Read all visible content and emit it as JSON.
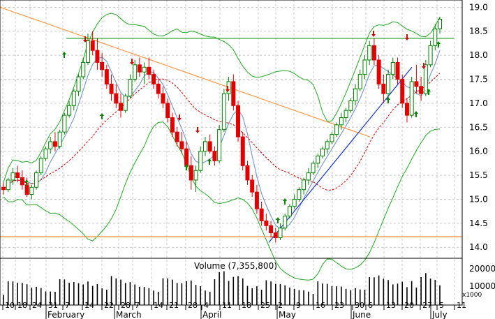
{
  "chart_data": {
    "type": "candlestick",
    "price_axis": {
      "ticks": [
        "19.0",
        "18.5",
        "18.0",
        "17.5",
        "17.0",
        "16.5",
        "16.0",
        "15.5",
        "15.0",
        "14.5",
        "14.0"
      ],
      "min": 13.8,
      "max": 19.15
    },
    "volume_axis": {
      "label": "Volume (7,355,800)",
      "ticks": [
        "20000",
        "10000"
      ],
      "unit_label": "x1000",
      "max": 30000
    },
    "x_axis": {
      "day_ticks": [
        "10",
        "18",
        "24",
        "31",
        "7",
        "14",
        "22",
        "28",
        "7",
        "14",
        "21",
        "28",
        "4",
        "11",
        "18",
        "25",
        "2",
        "9",
        "16",
        "23",
        "30",
        "6",
        "13",
        "20",
        "27",
        "5",
        "11"
      ],
      "months": [
        "February",
        "March",
        "April",
        "May",
        "June",
        "July"
      ]
    },
    "ohlc": [
      [
        15.25,
        15.35,
        15.1,
        15.2
      ],
      [
        15.2,
        15.45,
        15.15,
        15.4
      ],
      [
        15.4,
        15.65,
        15.3,
        15.55
      ],
      [
        15.55,
        15.7,
        15.35,
        15.45
      ],
      [
        15.45,
        15.6,
        15.2,
        15.3
      ],
      [
        15.3,
        15.45,
        15.05,
        15.1
      ],
      [
        15.1,
        15.3,
        15.0,
        15.25
      ],
      [
        15.25,
        15.6,
        15.2,
        15.55
      ],
      [
        15.55,
        15.9,
        15.5,
        15.85
      ],
      [
        15.85,
        16.1,
        15.8,
        16.05
      ],
      [
        16.05,
        16.3,
        15.95,
        16.2
      ],
      [
        16.2,
        16.4,
        16.0,
        16.1
      ],
      [
        16.1,
        16.45,
        16.05,
        16.4
      ],
      [
        16.4,
        16.8,
        16.35,
        16.75
      ],
      [
        16.75,
        17.05,
        16.7,
        16.95
      ],
      [
        16.95,
        17.3,
        16.85,
        17.25
      ],
      [
        17.25,
        17.6,
        17.15,
        17.55
      ],
      [
        17.55,
        17.95,
        17.5,
        17.85
      ],
      [
        17.85,
        18.45,
        17.8,
        18.3
      ],
      [
        18.3,
        18.5,
        18.0,
        18.1
      ],
      [
        18.1,
        18.35,
        17.7,
        17.85
      ],
      [
        17.85,
        18.05,
        17.55,
        17.7
      ],
      [
        17.7,
        17.8,
        17.3,
        17.4
      ],
      [
        17.4,
        17.6,
        17.05,
        17.2
      ],
      [
        17.2,
        17.4,
        16.9,
        17.0
      ],
      [
        17.0,
        17.2,
        16.7,
        16.85
      ],
      [
        16.85,
        17.2,
        16.8,
        17.15
      ],
      [
        17.15,
        17.6,
        17.1,
        17.5
      ],
      [
        17.5,
        17.9,
        17.45,
        17.8
      ],
      [
        17.8,
        17.95,
        17.55,
        17.65
      ],
      [
        17.65,
        17.85,
        17.4,
        17.75
      ],
      [
        17.75,
        17.95,
        17.5,
        17.6
      ],
      [
        17.6,
        17.7,
        17.3,
        17.4
      ],
      [
        17.4,
        17.5,
        17.1,
        17.2
      ],
      [
        17.2,
        17.35,
        16.9,
        17.0
      ],
      [
        17.0,
        17.1,
        16.6,
        16.7
      ],
      [
        16.7,
        16.8,
        16.3,
        16.4
      ],
      [
        16.4,
        16.5,
        16.1,
        16.2
      ],
      [
        16.2,
        16.4,
        15.95,
        16.05
      ],
      [
        16.05,
        16.2,
        15.6,
        15.7
      ],
      [
        15.7,
        15.9,
        15.2,
        15.4
      ],
      [
        15.4,
        15.7,
        15.15,
        15.6
      ],
      [
        15.6,
        16.1,
        15.55,
        16.0
      ],
      [
        16.0,
        16.3,
        15.9,
        16.2
      ],
      [
        16.2,
        16.35,
        15.95,
        16.0
      ],
      [
        16.0,
        16.1,
        15.7,
        15.8
      ],
      [
        15.8,
        16.55,
        15.75,
        16.45
      ],
      [
        16.45,
        17.3,
        16.4,
        17.2
      ],
      [
        17.2,
        17.55,
        17.05,
        17.45
      ],
      [
        17.45,
        17.6,
        16.85,
        16.95
      ],
      [
        16.95,
        17.05,
        16.2,
        16.3
      ],
      [
        16.3,
        16.4,
        15.6,
        15.7
      ],
      [
        15.7,
        15.8,
        15.3,
        15.4
      ],
      [
        15.4,
        15.5,
        15.05,
        15.15
      ],
      [
        15.15,
        15.3,
        14.7,
        14.8
      ],
      [
        14.8,
        14.95,
        14.45,
        14.55
      ],
      [
        14.55,
        14.7,
        14.35,
        14.45
      ],
      [
        14.45,
        14.55,
        14.2,
        14.3
      ],
      [
        14.3,
        14.4,
        14.1,
        14.2
      ],
      [
        14.2,
        14.5,
        14.15,
        14.4
      ],
      [
        14.4,
        14.7,
        14.35,
        14.65
      ],
      [
        14.65,
        14.9,
        14.6,
        14.85
      ],
      [
        14.85,
        15.1,
        14.8,
        15.0
      ],
      [
        15.0,
        15.25,
        14.95,
        15.2
      ],
      [
        15.2,
        15.45,
        15.1,
        15.4
      ],
      [
        15.4,
        15.65,
        15.3,
        15.55
      ],
      [
        15.55,
        15.8,
        15.5,
        15.75
      ],
      [
        15.75,
        15.95,
        15.65,
        15.9
      ],
      [
        15.9,
        16.1,
        15.85,
        16.05
      ],
      [
        16.05,
        16.25,
        15.95,
        16.2
      ],
      [
        16.2,
        16.4,
        16.15,
        16.35
      ],
      [
        16.35,
        16.6,
        16.3,
        16.55
      ],
      [
        16.55,
        16.8,
        16.45,
        16.7
      ],
      [
        16.7,
        16.9,
        16.6,
        16.85
      ],
      [
        16.85,
        17.1,
        16.8,
        17.05
      ],
      [
        17.05,
        17.4,
        16.95,
        17.3
      ],
      [
        17.3,
        17.7,
        17.25,
        17.6
      ],
      [
        17.6,
        18.0,
        17.5,
        17.9
      ],
      [
        17.9,
        18.3,
        17.8,
        18.2
      ],
      [
        18.2,
        18.35,
        17.8,
        17.9
      ],
      [
        17.9,
        18.0,
        17.3,
        17.4
      ],
      [
        17.4,
        17.6,
        17.0,
        17.2
      ],
      [
        17.2,
        17.7,
        17.1,
        17.6
      ],
      [
        17.6,
        17.95,
        17.5,
        17.85
      ],
      [
        17.85,
        17.95,
        17.4,
        17.5
      ],
      [
        17.5,
        17.6,
        16.9,
        17.0
      ],
      [
        17.0,
        17.1,
        16.6,
        16.75
      ],
      [
        16.75,
        17.55,
        16.7,
        17.45
      ],
      [
        17.45,
        17.8,
        17.2,
        17.35
      ],
      [
        17.35,
        17.55,
        17.05,
        17.2
      ],
      [
        17.2,
        17.9,
        17.15,
        17.8
      ],
      [
        17.8,
        18.3,
        17.75,
        18.2
      ],
      [
        18.2,
        18.65,
        18.1,
        18.55
      ],
      [
        18.55,
        18.8,
        18.45,
        18.75
      ]
    ]
  }
}
